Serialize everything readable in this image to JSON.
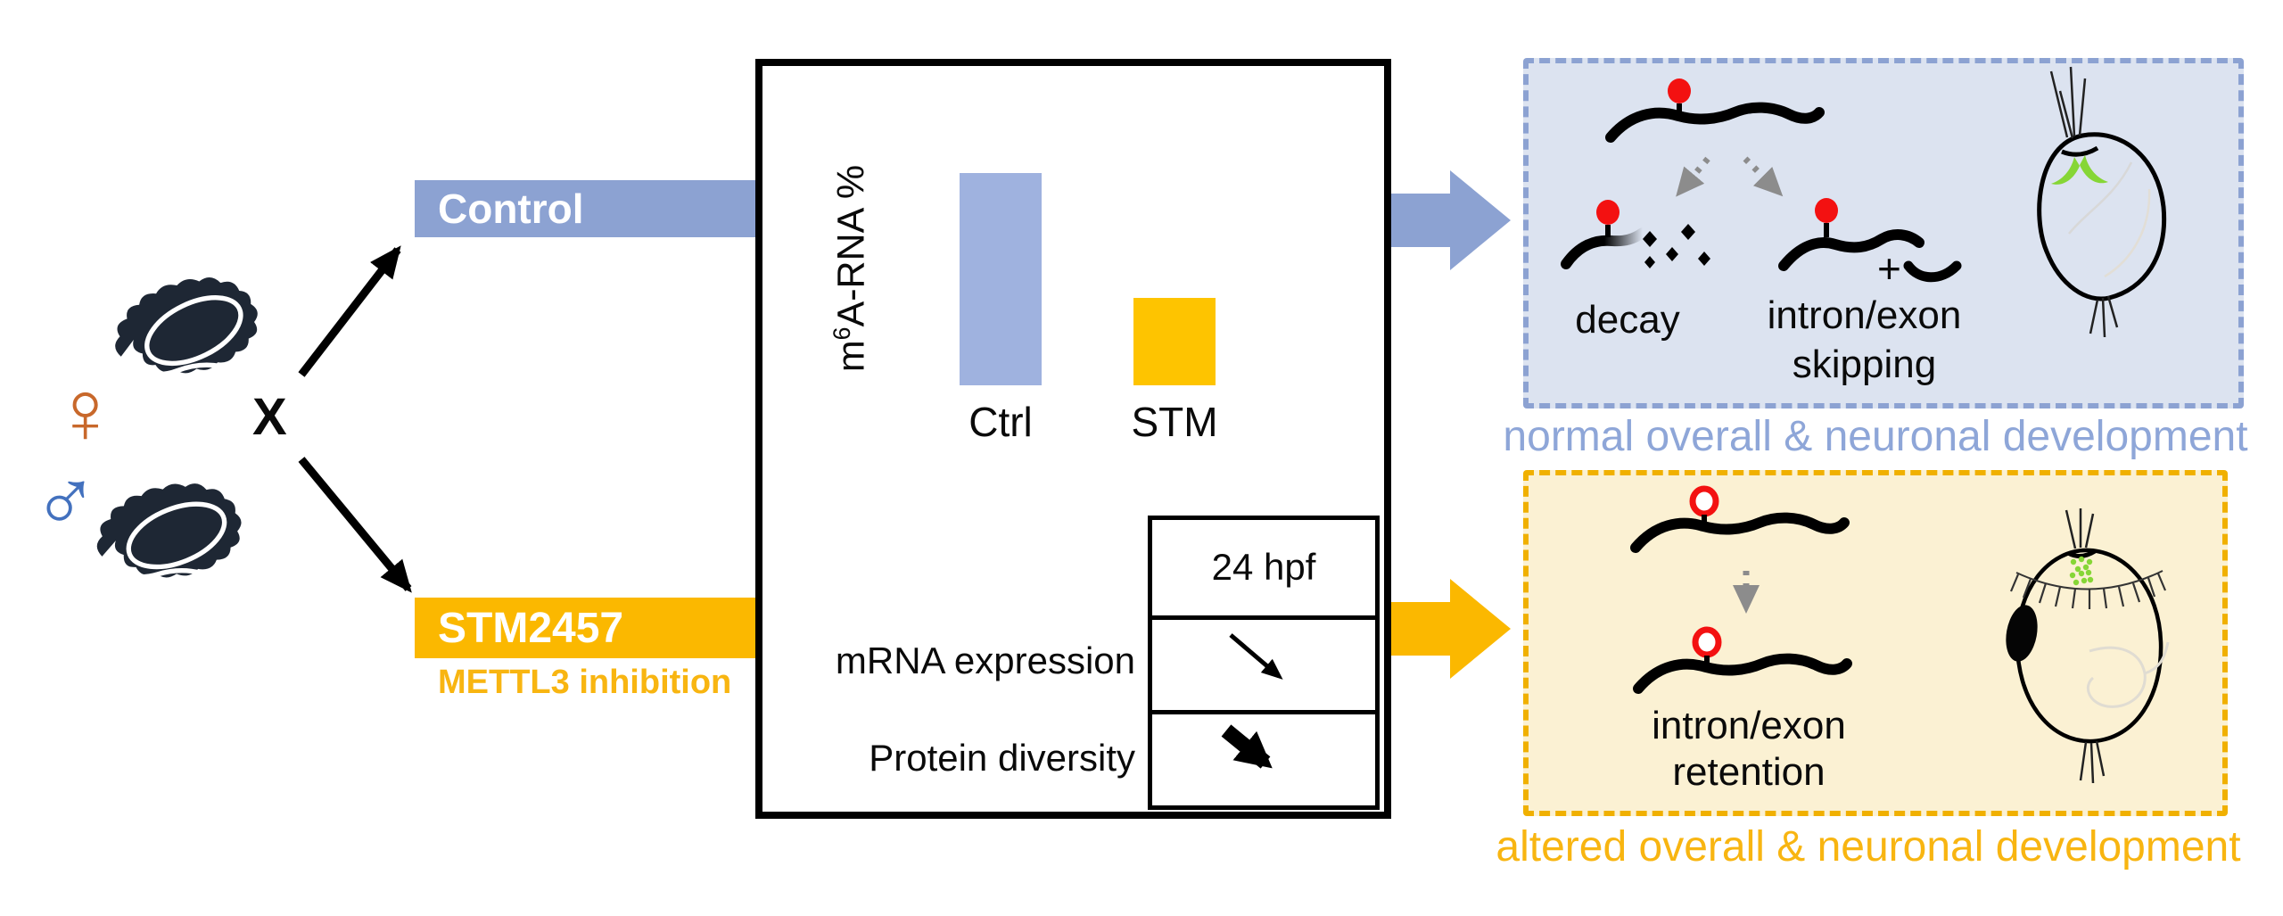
{
  "cross": {
    "female_symbol": "♀",
    "male_symbol": "♂",
    "cross_symbol": "X"
  },
  "branches": {
    "control": {
      "label": "Control"
    },
    "treatment": {
      "label": "STM2457",
      "sublabel": "METTL3 inhibition"
    }
  },
  "chart_data": {
    "type": "bar",
    "title": "",
    "categories": [
      "Ctrl",
      "STM"
    ],
    "values": [
      90,
      37
    ],
    "xlabel": "",
    "ylabel": "m6A-RNA %",
    "ylabel_parts": {
      "pre": "m",
      "sup": "6",
      "post": "A-RNA %"
    },
    "ylim": [
      0,
      100
    ],
    "grid": false,
    "legend": false,
    "bar_colors": [
      "#9FB2DF",
      "#FEC400"
    ]
  },
  "results_table": {
    "header": "24 hpf",
    "rows": [
      {
        "label": "mRNA expression",
        "trend": "decrease"
      },
      {
        "label": "Protein diversity",
        "trend": "strong decrease"
      }
    ]
  },
  "normal_outcome": {
    "decay_label": "decay",
    "skipping_label": [
      "intron/exon",
      "skipping"
    ],
    "plus_symbol": "+",
    "caption": "normal overall & neuronal development"
  },
  "altered_outcome": {
    "retention_label": [
      "intron/exon",
      "retention"
    ],
    "caption": "altered overall & neuronal development"
  },
  "colors": {
    "oyster": "#1E2734",
    "female-orange": "#C8682B",
    "male-blue": "#4371BE",
    "peri": "#8CA2D2",
    "peri-bar": "#9FB2DF",
    "peri-fill": "#DCE3F0",
    "peri-caption": "#8EA6D8",
    "amber": "#FBB800",
    "amber-bar": "#FEC400",
    "amber-border": "#F0B000",
    "amber-fill": "#FBF1D3",
    "amber-caption": "#F8B511",
    "m6a-red": "#F31111",
    "arrow-gray": "#8C8C8C",
    "neuron-green": "#86D636"
  }
}
